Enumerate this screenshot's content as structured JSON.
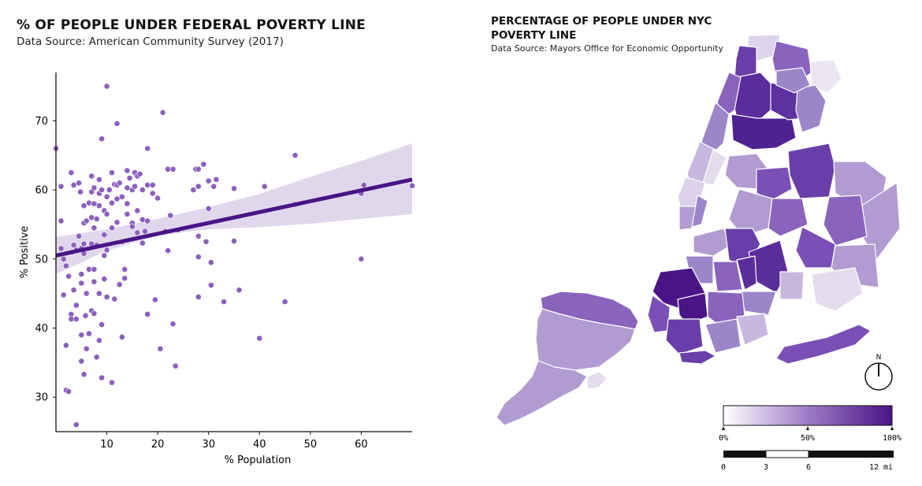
{
  "left_chart": {
    "title": "% OF PEOPLE UNDER FEDERAL POVERTY LINE",
    "subtitle": "Data Source: American Community Survey (2017)"
  },
  "right_map": {
    "title": "PERCENTAGE OF PEOPLE  UNDER NYC POVERTY LINE",
    "subtitle": "Data Source: Mayors Office for Economic Opportunity",
    "compass_label": "N",
    "colorbar_ticks": [
      "0%",
      "50%",
      "100%"
    ],
    "scalebar_ticks": [
      "0",
      "3",
      "6",
      "12 mi"
    ],
    "colors": {
      "low": "#ffffff",
      "mid": "#9e7bc6",
      "high": "#4a1486"
    }
  },
  "chart_data": {
    "type": "scatter",
    "xlabel": "% Population",
    "ylabel": "% Positive",
    "xlim": [
      0,
      70
    ],
    "ylim": [
      25,
      77
    ],
    "xticks": [
      10,
      20,
      30,
      40,
      50,
      60
    ],
    "yticks": [
      30,
      40,
      50,
      60,
      70
    ],
    "point_color": "#8c5fbd",
    "line_color": "#4a1486",
    "band_color": "#dcd0ea",
    "regression": {
      "x": [
        0,
        70
      ],
      "y": [
        50.5,
        61.5
      ]
    },
    "ci_band": {
      "x": [
        0,
        10,
        20,
        30,
        40,
        50,
        60,
        70
      ],
      "lower": [
        47.8,
        51.2,
        53.4,
        54.3,
        54.6,
        55.1,
        55.8,
        56.5
      ],
      "upper": [
        53.2,
        54.3,
        55.8,
        57.5,
        59.4,
        61.9,
        64.2,
        66.7
      ]
    },
    "points": [
      [
        0,
        66
      ],
      [
        1,
        60.5
      ],
      [
        1,
        55.5
      ],
      [
        1,
        51.5
      ],
      [
        1.5,
        50
      ],
      [
        1.5,
        44.8
      ],
      [
        2,
        49
      ],
      [
        2,
        31
      ],
      [
        2,
        37.5
      ],
      [
        2.5,
        47.5
      ],
      [
        2.5,
        30.8
      ],
      [
        3,
        42
      ],
      [
        3,
        41.3
      ],
      [
        3,
        62.5
      ],
      [
        3.2,
        51
      ],
      [
        3.5,
        52
      ],
      [
        3.5,
        45.5
      ],
      [
        3.5,
        60.7
      ],
      [
        4,
        43.3
      ],
      [
        4,
        41.3
      ],
      [
        4,
        51.3
      ],
      [
        4,
        26
      ],
      [
        4.5,
        61
      ],
      [
        4.5,
        53.3
      ],
      [
        4.8,
        59.7
      ],
      [
        5,
        51.5
      ],
      [
        5,
        47.8
      ],
      [
        5,
        46.5
      ],
      [
        5,
        39
      ],
      [
        5,
        35.2
      ],
      [
        5.5,
        57.7
      ],
      [
        5.5,
        55.2
      ],
      [
        5.5,
        52.2
      ],
      [
        5.5,
        50.8
      ],
      [
        5.5,
        33.3
      ],
      [
        5.8,
        41.8
      ],
      [
        6,
        45
      ],
      [
        6,
        37
      ],
      [
        6,
        55.5
      ],
      [
        6.5,
        58.1
      ],
      [
        6.5,
        48.5
      ],
      [
        6.5,
        39.2
      ],
      [
        7,
        62
      ],
      [
        7,
        59.7
      ],
      [
        7,
        56
      ],
      [
        7,
        52.2
      ],
      [
        7,
        42.5
      ],
      [
        7.5,
        60.3
      ],
      [
        7.5,
        58
      ],
      [
        7.5,
        54.5
      ],
      [
        7.5,
        48.5
      ],
      [
        7.5,
        46.7
      ],
      [
        7.5,
        42.1
      ],
      [
        8,
        55.8
      ],
      [
        8,
        52
      ],
      [
        8,
        35.8
      ],
      [
        8.5,
        61.5
      ],
      [
        8.5,
        59.5
      ],
      [
        8.5,
        57.7
      ],
      [
        8.5,
        45
      ],
      [
        8.5,
        38.2
      ],
      [
        9,
        60
      ],
      [
        9,
        67.4
      ],
      [
        9,
        40.5
      ],
      [
        9,
        32.8
      ],
      [
        9.5,
        57
      ],
      [
        9.5,
        53.5
      ],
      [
        9.5,
        50.5
      ],
      [
        9.5,
        47.1
      ],
      [
        10,
        75
      ],
      [
        10,
        59
      ],
      [
        10,
        56.5
      ],
      [
        10,
        51.3
      ],
      [
        10,
        44.5
      ],
      [
        10.5,
        60
      ],
      [
        11,
        62.5
      ],
      [
        11,
        58.1
      ],
      [
        11,
        54.5
      ],
      [
        11,
        32.1
      ],
      [
        11.5,
        60.8
      ],
      [
        11.5,
        44.2
      ],
      [
        12,
        69.6
      ],
      [
        12,
        60.7
      ],
      [
        12,
        58.7
      ],
      [
        12,
        55.3
      ],
      [
        12.5,
        61
      ],
      [
        12.5,
        46.3
      ],
      [
        13,
        52.5
      ],
      [
        13,
        38.7
      ],
      [
        13,
        59
      ],
      [
        13.5,
        48.5
      ],
      [
        13.5,
        47.2
      ],
      [
        14,
        62.8
      ],
      [
        14,
        60.3
      ],
      [
        14,
        56.5
      ],
      [
        14,
        58
      ],
      [
        14.5,
        61.7
      ],
      [
        15,
        55.2
      ],
      [
        15,
        60
      ],
      [
        15,
        54.7
      ],
      [
        15.5,
        62.5
      ],
      [
        15.5,
        60.5
      ],
      [
        16,
        62
      ],
      [
        16,
        57
      ],
      [
        16,
        53.8
      ],
      [
        16.5,
        62.3
      ],
      [
        17,
        60
      ],
      [
        17,
        55.7
      ],
      [
        17,
        52.3
      ],
      [
        17.5,
        54
      ],
      [
        18,
        66
      ],
      [
        18,
        60.7
      ],
      [
        18,
        55.5
      ],
      [
        18,
        42
      ],
      [
        19,
        59.5
      ],
      [
        19,
        60.7
      ],
      [
        19.5,
        44.1
      ],
      [
        20,
        58.8
      ],
      [
        20.5,
        37
      ],
      [
        21,
        71.2
      ],
      [
        21.5,
        54
      ],
      [
        22,
        63
      ],
      [
        22,
        51.2
      ],
      [
        22.5,
        56.3
      ],
      [
        23,
        63
      ],
      [
        23,
        40.6
      ],
      [
        23.5,
        34.5
      ],
      [
        24,
        54.2
      ],
      [
        27,
        60
      ],
      [
        27.5,
        63
      ],
      [
        28,
        63
      ],
      [
        28,
        60.5
      ],
      [
        28,
        53.3
      ],
      [
        28,
        50.3
      ],
      [
        28,
        44.5
      ],
      [
        29,
        63.7
      ],
      [
        29.5,
        52.5
      ],
      [
        30,
        57.3
      ],
      [
        30,
        61.3
      ],
      [
        30.5,
        46.2
      ],
      [
        30.5,
        49.5
      ],
      [
        31,
        60.5
      ],
      [
        31.5,
        61.5
      ],
      [
        33,
        43.8
      ],
      [
        35,
        60.2
      ],
      [
        35,
        52.6
      ],
      [
        36,
        45.5
      ],
      [
        40,
        38.5
      ],
      [
        41,
        60.5
      ],
      [
        45,
        43.8
      ],
      [
        47,
        65
      ],
      [
        47,
        57.9
      ],
      [
        60,
        50
      ],
      [
        60,
        59.5
      ],
      [
        60.5,
        60.7
      ],
      [
        70,
        60.6
      ]
    ]
  }
}
